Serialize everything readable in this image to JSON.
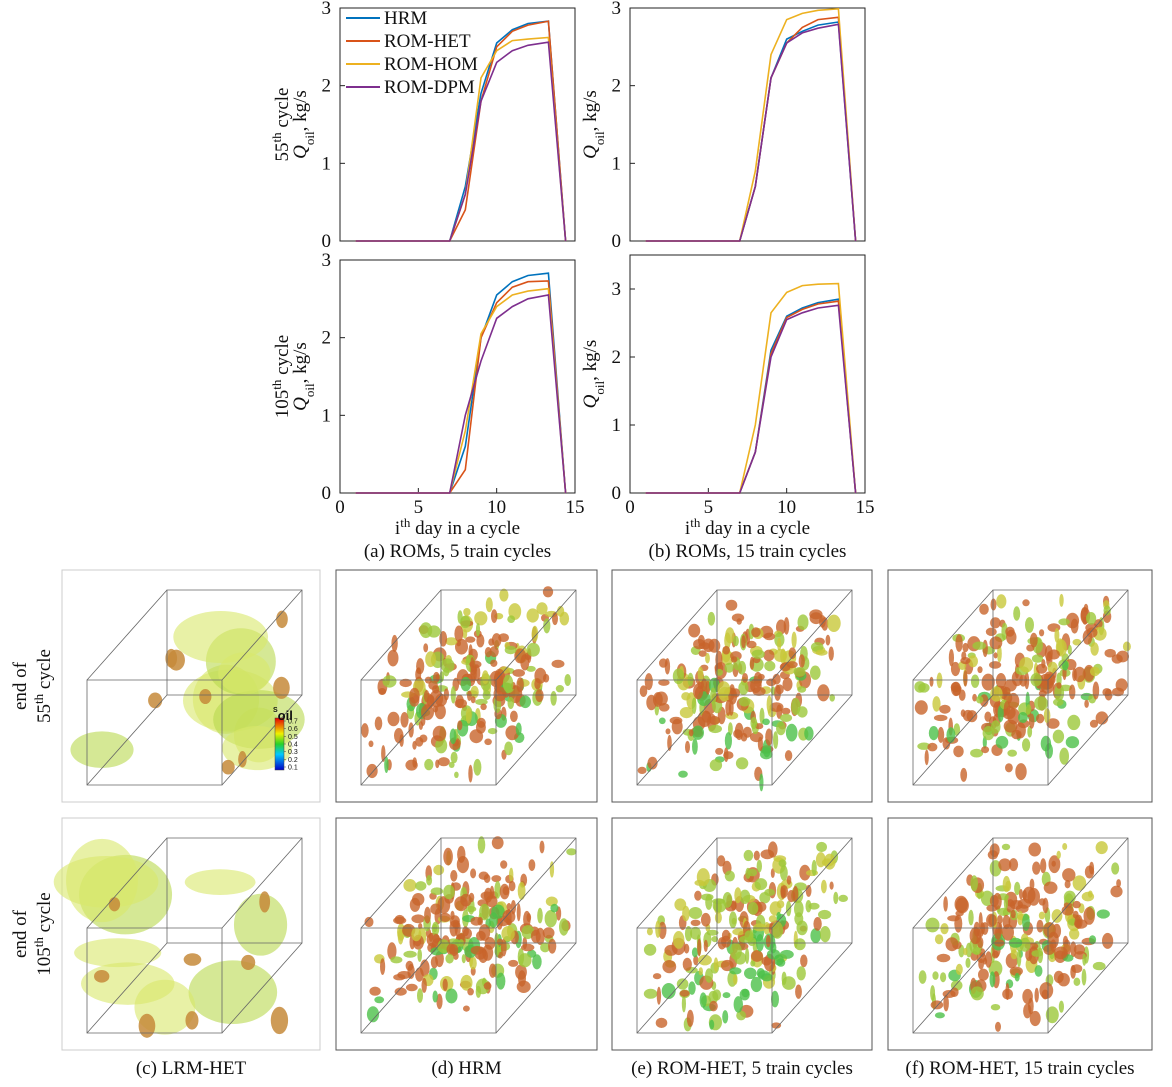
{
  "chart_data": [
    {
      "type": "line",
      "xlim": [
        0,
        15
      ],
      "ylim": [
        0,
        3
      ],
      "yticks": [
        0,
        1,
        2,
        3
      ],
      "legend": "upper left",
      "ylabel": {
        "cycle": "55",
        "cycle_sup": "th",
        "cycle_rest": " cycle",
        "quantity": "Q",
        "quantity_sub": "oil",
        "unit": ", kg/s"
      },
      "x": [
        1,
        2,
        3,
        4,
        5,
        6,
        7,
        8,
        9,
        10,
        11,
        12,
        13.3,
        14.4
      ],
      "series": [
        {
          "name": "HRM",
          "color": "#0072bd",
          "values": [
            0,
            0,
            0,
            0,
            0,
            0,
            0,
            0.7,
            1.9,
            2.55,
            2.72,
            2.8,
            2.83,
            0
          ]
        },
        {
          "name": "ROM-HET",
          "color": "#d95319",
          "values": [
            0,
            0,
            0,
            0,
            0,
            0,
            0,
            0.4,
            1.8,
            2.5,
            2.7,
            2.78,
            2.83,
            0
          ]
        },
        {
          "name": "ROM-HOM",
          "color": "#edb120",
          "values": [
            0,
            0,
            0,
            0,
            0,
            0,
            0,
            0.6,
            2.1,
            2.45,
            2.58,
            2.6,
            2.62,
            0
          ]
        },
        {
          "name": "ROM-DPM",
          "color": "#7e2f8e",
          "values": [
            0,
            0,
            0,
            0,
            0,
            0,
            0,
            0.6,
            1.8,
            2.3,
            2.45,
            2.52,
            2.56,
            0
          ]
        }
      ]
    },
    {
      "type": "line",
      "xlim": [
        0,
        15
      ],
      "ylim": [
        0,
        3
      ],
      "yticks": [
        0,
        1,
        2,
        3
      ],
      "ylabel": {
        "quantity": "Q",
        "quantity_sub": "oil",
        "unit": ", kg/s"
      },
      "x": [
        1,
        2,
        3,
        4,
        5,
        6,
        7,
        8,
        9,
        10,
        11,
        12,
        13.3,
        14.4
      ],
      "series": [
        {
          "name": "HRM",
          "color": "#0072bd",
          "values": [
            0,
            0,
            0,
            0,
            0,
            0,
            0,
            0.7,
            2.1,
            2.6,
            2.7,
            2.78,
            2.82,
            0
          ]
        },
        {
          "name": "ROM-HET",
          "color": "#d95319",
          "values": [
            0,
            0,
            0,
            0,
            0,
            0,
            0,
            0.7,
            2.1,
            2.55,
            2.75,
            2.85,
            2.88,
            0
          ]
        },
        {
          "name": "ROM-HOM",
          "color": "#edb120",
          "values": [
            0,
            0,
            0,
            0,
            0,
            0,
            0,
            0.9,
            2.4,
            2.85,
            2.93,
            2.97,
            2.99,
            0
          ]
        },
        {
          "name": "ROM-DPM",
          "color": "#7e2f8e",
          "values": [
            0,
            0,
            0,
            0,
            0,
            0,
            0,
            0.7,
            2.1,
            2.55,
            2.68,
            2.74,
            2.79,
            0
          ]
        }
      ]
    },
    {
      "type": "line",
      "xlim": [
        0,
        15
      ],
      "xticks": [
        0,
        5,
        10,
        15
      ],
      "ylim": [
        0,
        3
      ],
      "yticks": [
        0,
        1,
        2,
        3
      ],
      "ylabel": {
        "cycle": "105",
        "cycle_sup": "th",
        "cycle_rest": " cycle",
        "quantity": "Q",
        "quantity_sub": "oil",
        "unit": ", kg/s"
      },
      "xlabel": {
        "main": "i",
        "sup": "th",
        "rest": " day in a cycle"
      },
      "caption": "(a) ROMs, 5 train cycles",
      "x": [
        1,
        2,
        3,
        4,
        5,
        6,
        7,
        8,
        9,
        10,
        11,
        12,
        13.3,
        14.4
      ],
      "series": [
        {
          "name": "HRM",
          "color": "#0072bd",
          "values": [
            0,
            0,
            0,
            0,
            0,
            0,
            0,
            0.6,
            2.0,
            2.55,
            2.72,
            2.8,
            2.83,
            0
          ]
        },
        {
          "name": "ROM-HET",
          "color": "#d95319",
          "values": [
            0,
            0,
            0,
            0,
            0,
            0,
            0,
            0.3,
            2.0,
            2.45,
            2.65,
            2.72,
            2.73,
            0
          ]
        },
        {
          "name": "ROM-HOM",
          "color": "#edb120",
          "values": [
            0,
            0,
            0,
            0,
            0,
            0,
            0,
            0.8,
            2.05,
            2.4,
            2.55,
            2.6,
            2.63,
            0
          ]
        },
        {
          "name": "ROM-DPM",
          "color": "#7e2f8e",
          "values": [
            0,
            0,
            0,
            0,
            0,
            0,
            0,
            1.0,
            1.7,
            2.25,
            2.4,
            2.5,
            2.55,
            0
          ]
        }
      ]
    },
    {
      "type": "line",
      "xlim": [
        0,
        15
      ],
      "xticks": [
        0,
        5,
        10,
        15
      ],
      "ylim": [
        0,
        3.5
      ],
      "yticks": [
        0,
        1,
        2,
        3
      ],
      "ylabel": {
        "quantity": "Q",
        "quantity_sub": "oil",
        "unit": ", kg/s"
      },
      "xlabel": {
        "main": "i",
        "sup": "th",
        "rest": " day in a cycle"
      },
      "caption": "(b) ROMs, 15 train cycles",
      "x": [
        1,
        2,
        3,
        4,
        5,
        6,
        7,
        8,
        9,
        10,
        11,
        12,
        13.3,
        14.4
      ],
      "series": [
        {
          "name": "HRM",
          "color": "#0072bd",
          "values": [
            0,
            0,
            0,
            0,
            0,
            0,
            0,
            0.6,
            2.1,
            2.6,
            2.72,
            2.8,
            2.85,
            0
          ]
        },
        {
          "name": "ROM-HET",
          "color": "#d95319",
          "values": [
            0,
            0,
            0,
            0,
            0,
            0,
            0,
            0.6,
            2.05,
            2.58,
            2.7,
            2.78,
            2.82,
            0
          ]
        },
        {
          "name": "ROM-HOM",
          "color": "#edb120",
          "values": [
            0,
            0,
            0,
            0,
            0,
            0,
            0,
            1.0,
            2.65,
            2.95,
            3.05,
            3.07,
            3.08,
            0
          ]
        },
        {
          "name": "ROM-DPM",
          "color": "#7e2f8e",
          "values": [
            0,
            0,
            0,
            0,
            0,
            0,
            0,
            0.6,
            2.0,
            2.55,
            2.65,
            2.72,
            2.76,
            0
          ]
        }
      ]
    }
  ],
  "image_panels": {
    "row_labels": [
      {
        "line1": "end of",
        "num": "55",
        "sup": "th",
        "rest": " cycle"
      },
      {
        "line1": "end of",
        "num": "105",
        "sup": "th",
        "rest": " cycle"
      }
    ],
    "captions": [
      "(c) LRM-HET",
      "(d) HRM",
      "(e) ROM-HET, 5 train cycles",
      "(f) ROM-HET, 15 train cycles"
    ],
    "colorbar": {
      "label": "S",
      "label_sub": "oil",
      "ticks": [
        0.7,
        0.6,
        0.5,
        0.4,
        0.3,
        0.2,
        0.1
      ]
    }
  }
}
